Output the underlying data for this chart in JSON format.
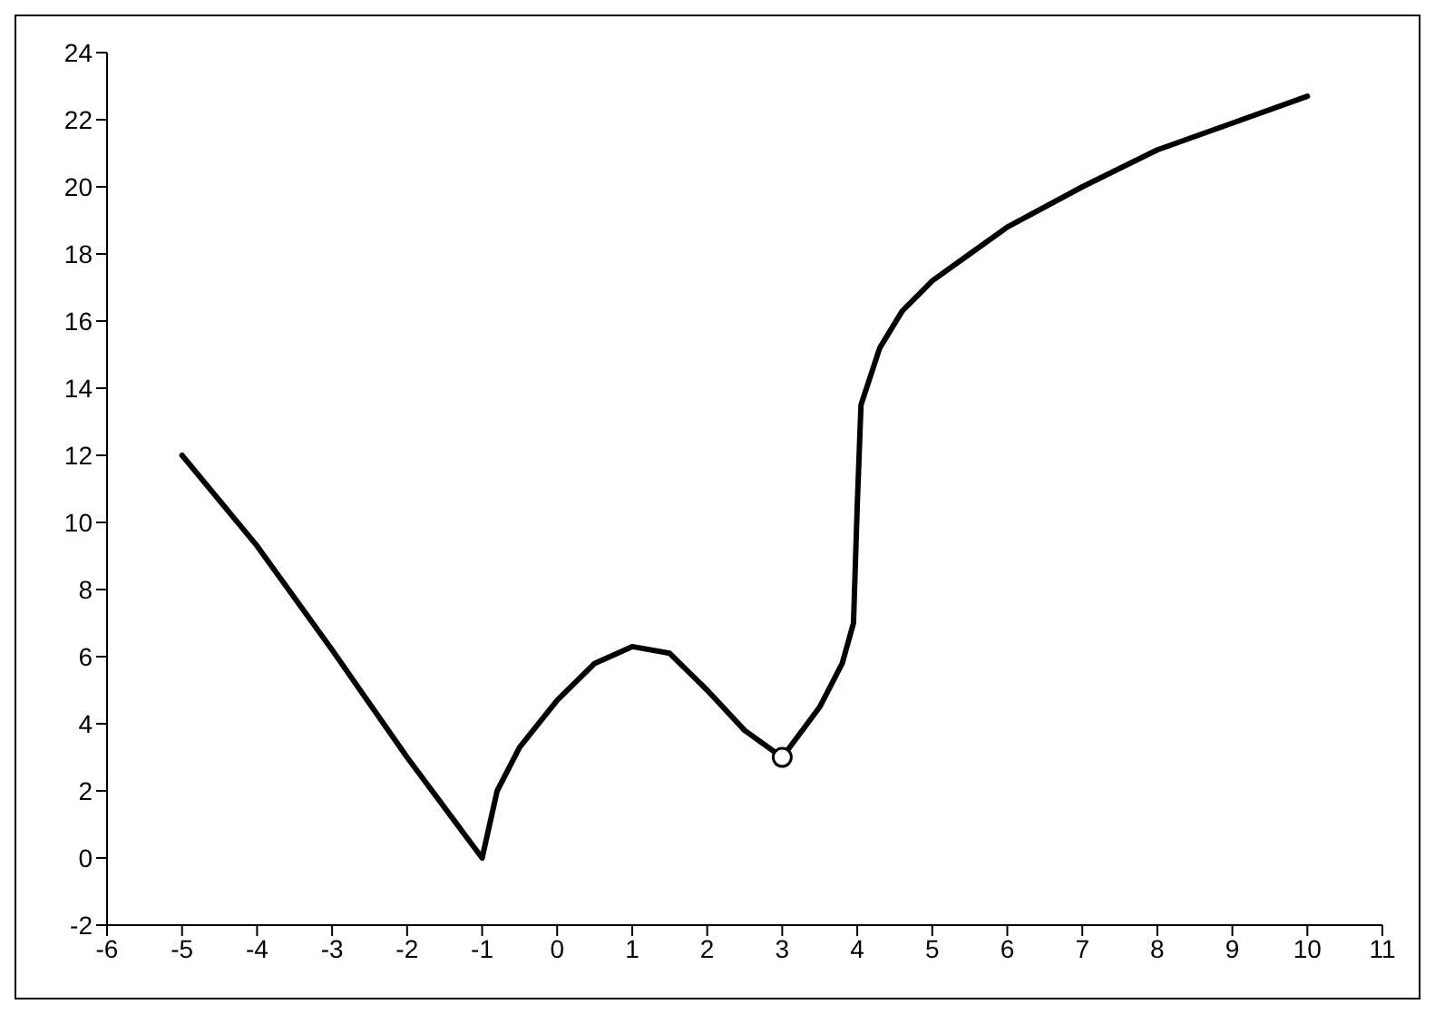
{
  "chart_data": {
    "type": "line",
    "xlim": [
      -6,
      11
    ],
    "xticks": [
      -6,
      -5,
      -4,
      -3,
      -2,
      -1,
      0,
      1,
      2,
      3,
      4,
      5,
      6,
      7,
      8,
      9,
      10,
      11
    ],
    "ylim": [
      -2,
      24
    ],
    "yticks": [
      -2,
      0,
      2,
      4,
      6,
      8,
      10,
      12,
      14,
      16,
      18,
      20,
      22,
      24
    ],
    "grid": false,
    "marker": "none",
    "line_style": "solid",
    "series": [
      {
        "color": "#000000",
        "x": [
          -5,
          -4,
          -3,
          -2,
          -1,
          -0.8,
          -0.5,
          0,
          0.5,
          1,
          1.5,
          2,
          2.5,
          3,
          3.5,
          3.8,
          3.95,
          4,
          4.05,
          4.3,
          4.6,
          5,
          5.5,
          6,
          7,
          8,
          9,
          10
        ],
        "values": [
          12,
          9.3,
          6.2,
          3,
          0,
          2,
          3.3,
          4.7,
          5.8,
          6.3,
          6.1,
          5,
          3.8,
          3,
          4.5,
          5.8,
          7,
          10.5,
          13.5,
          15.2,
          16.3,
          17.2,
          18,
          18.8,
          20,
          21.1,
          21.9,
          22.7
        ]
      },
      {
        "type": "scatter",
        "marker": "circle",
        "color": "#ffffff",
        "x": [
          3
        ],
        "values": [
          3
        ]
      }
    ]
  }
}
